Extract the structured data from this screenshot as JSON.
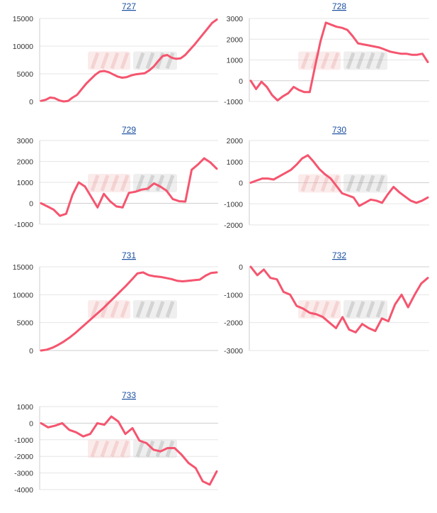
{
  "style": {
    "line_color": "#f5556f",
    "grid_color": "#e6e6e6",
    "axis_color": "#cccccc",
    "title_color": "#1a4fa0"
  },
  "chart_data": [
    {
      "type": "line",
      "title": "727",
      "ylim": [
        0,
        15000
      ],
      "yticks": [
        0,
        5000,
        10000,
        15000
      ],
      "grid": true,
      "values": [
        100,
        300,
        700,
        600,
        200,
        0,
        100,
        700,
        1200,
        2200,
        3200,
        4000,
        4800,
        5400,
        5500,
        5300,
        4900,
        4500,
        4300,
        4400,
        4700,
        4900,
        5000,
        5100,
        5600,
        6300,
        7300,
        8200,
        8400,
        7900,
        7700,
        7800,
        8400,
        9300,
        10200,
        11200,
        12200,
        13200,
        14200,
        14800
      ]
    },
    {
      "type": "line",
      "title": "728",
      "ylim": [
        -1000,
        3000
      ],
      "yticks": [
        -1000,
        0,
        1000,
        2000,
        3000
      ],
      "grid": true,
      "values": [
        0,
        -400,
        -50,
        -300,
        -700,
        -950,
        -750,
        -600,
        -300,
        -450,
        -550,
        -550,
        700,
        1900,
        2800,
        2700,
        2600,
        2550,
        2450,
        2150,
        1800,
        1750,
        1700,
        1650,
        1600,
        1500,
        1400,
        1350,
        1300,
        1300,
        1250,
        1250,
        1300,
        900
      ]
    },
    {
      "type": "line",
      "title": "729",
      "ylim": [
        -1000,
        3000
      ],
      "yticks": [
        -1000,
        0,
        1000,
        2000,
        3000
      ],
      "grid": true,
      "values": [
        0,
        -150,
        -300,
        -600,
        -500,
        400,
        1000,
        800,
        300,
        -200,
        450,
        100,
        -150,
        -200,
        500,
        550,
        650,
        700,
        950,
        800,
        600,
        200,
        100,
        80,
        1600,
        1850,
        2150,
        1950,
        1650
      ]
    },
    {
      "type": "line",
      "title": "730",
      "ylim": [
        -2000,
        2000
      ],
      "yticks": [
        -2000,
        -1000,
        0,
        1000,
        2000
      ],
      "grid": true,
      "values": [
        0,
        100,
        200,
        200,
        150,
        300,
        450,
        600,
        850,
        1150,
        1300,
        1000,
        650,
        400,
        200,
        -150,
        -500,
        -600,
        -700,
        -1100,
        -950,
        -800,
        -850,
        -950,
        -550,
        -200,
        -450,
        -650,
        -850,
        -950,
        -850,
        -700
      ]
    },
    {
      "type": "line",
      "title": "731",
      "ylim": [
        0,
        15000
      ],
      "yticks": [
        0,
        5000,
        10000,
        15000
      ],
      "grid": true,
      "values": [
        0,
        150,
        500,
        1000,
        1600,
        2300,
        3100,
        4000,
        4900,
        5800,
        6700,
        7600,
        8600,
        9600,
        10600,
        11600,
        12700,
        13800,
        14000,
        13500,
        13300,
        13200,
        13000,
        12800,
        12500,
        12400,
        12500,
        12600,
        12700,
        13400,
        13900,
        14000
      ]
    },
    {
      "type": "line",
      "title": "732",
      "ylim": [
        -3000,
        0
      ],
      "yticks": [
        -3000,
        -2000,
        -1000,
        0
      ],
      "grid": true,
      "values": [
        0,
        -300,
        -100,
        -400,
        -450,
        -900,
        -1000,
        -1400,
        -1500,
        -1650,
        -1700,
        -1800,
        -2000,
        -2200,
        -1800,
        -2250,
        -2350,
        -2050,
        -2200,
        -2300,
        -1850,
        -1950,
        -1350,
        -1000,
        -1450,
        -1000,
        -600,
        -400
      ]
    },
    {
      "type": "line",
      "title": "733",
      "ylim": [
        -4000,
        1000
      ],
      "yticks": [
        -4000,
        -3000,
        -2000,
        -1000,
        0,
        1000
      ],
      "grid": true,
      "values": [
        0,
        -250,
        -150,
        0,
        -400,
        -550,
        -800,
        -650,
        0,
        -100,
        400,
        100,
        -650,
        -300,
        -1050,
        -1200,
        -1600,
        -1700,
        -1500,
        -1500,
        -1900,
        -2400,
        -2700,
        -3500,
        -3700,
        -2900
      ]
    }
  ]
}
